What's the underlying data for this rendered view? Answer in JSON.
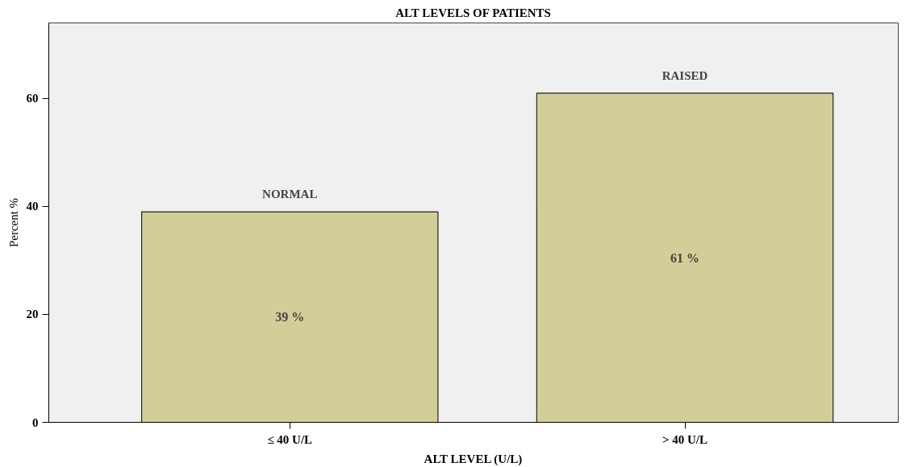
{
  "chart_data": {
    "type": "bar",
    "title": "ALT LEVELS OF PATIENTS",
    "xlabel": "ALT LEVEL (U/L)",
    "ylabel": "Percent %",
    "categories": [
      "≤ 40 U/L",
      "> 40 U/L"
    ],
    "values": [
      39,
      61
    ],
    "value_labels": [
      "39 %",
      "61 %"
    ],
    "color": "#d3ce98",
    "ylim": [
      0,
      74
    ],
    "yticks": [
      0,
      20,
      40,
      60
    ],
    "grid": false,
    "annotations": [
      {
        "text": "NORMAL",
        "x": "≤ 40 U/L",
        "y": 39
      },
      {
        "text": "RAISED",
        "x": "> 40 U/L",
        "y": 61
      }
    ]
  }
}
